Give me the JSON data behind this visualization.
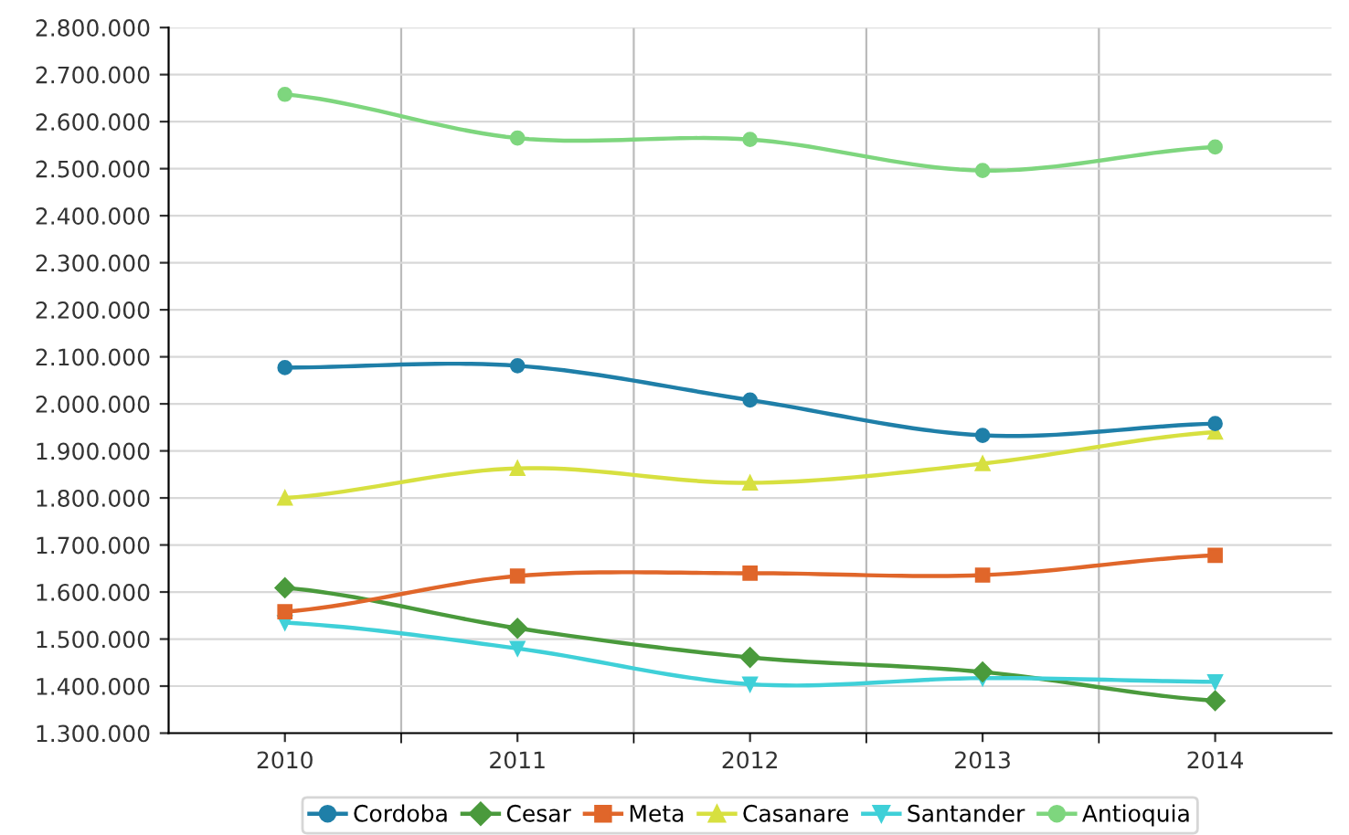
{
  "chart_data": {
    "type": "line",
    "categories": [
      "2010",
      "2011",
      "2012",
      "2013",
      "2014"
    ],
    "series": [
      {
        "name": "Cordoba",
        "color": "#1f7fa8",
        "marker": "circle",
        "values": [
          2077000,
          2081000,
          2008000,
          1933000,
          1958000
        ]
      },
      {
        "name": "Cesar",
        "color": "#4a9a3c",
        "marker": "diamond",
        "values": [
          1609000,
          1523000,
          1461000,
          1430000,
          1369000
        ]
      },
      {
        "name": "Meta",
        "color": "#e0662a",
        "marker": "square",
        "values": [
          1558000,
          1634000,
          1640000,
          1636000,
          1678000
        ]
      },
      {
        "name": "Casanare",
        "color": "#d7e040",
        "marker": "triangle",
        "values": [
          1800000,
          1863000,
          1832000,
          1873000,
          1940000
        ]
      },
      {
        "name": "Santander",
        "color": "#3fd0d8",
        "marker": "triangle_down",
        "values": [
          1535000,
          1480000,
          1404000,
          1417000,
          1409000
        ]
      },
      {
        "name": "Antioquia",
        "color": "#7ed67e",
        "marker": "circle",
        "values": [
          2658000,
          2565000,
          2562000,
          2496000,
          2546000
        ]
      }
    ],
    "ylim": [
      1300000,
      2800000
    ],
    "yticks": [
      {
        "value": 1300000,
        "label": "1.300.000"
      },
      {
        "value": 1400000,
        "label": "1.400.000"
      },
      {
        "value": 1500000,
        "label": "1.500.000"
      },
      {
        "value": 1600000,
        "label": "1.600.000"
      },
      {
        "value": 1700000,
        "label": "1.700.000"
      },
      {
        "value": 1800000,
        "label": "1.800.000"
      },
      {
        "value": 1900000,
        "label": "1.900.000"
      },
      {
        "value": 2000000,
        "label": "2.000.000"
      },
      {
        "value": 2100000,
        "label": "2.100.000"
      },
      {
        "value": 2200000,
        "label": "2.200.000"
      },
      {
        "value": 2300000,
        "label": "2.300.000"
      },
      {
        "value": 2400000,
        "label": "2.400.000"
      },
      {
        "value": 2500000,
        "label": "2.500.000"
      },
      {
        "value": 2600000,
        "label": "2.600.000"
      },
      {
        "value": 2700000,
        "label": "2.700.000"
      },
      {
        "value": 2800000,
        "label": "2.800.000"
      }
    ],
    "grid": true,
    "legend": "bottom",
    "line_style": "solid"
  }
}
